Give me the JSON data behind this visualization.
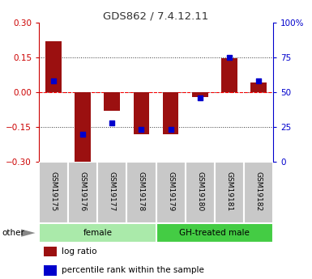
{
  "title": "GDS862 / 7.4.12.11",
  "samples": [
    "GSM19175",
    "GSM19176",
    "GSM19177",
    "GSM19178",
    "GSM19179",
    "GSM19180",
    "GSM19181",
    "GSM19182"
  ],
  "log_ratio": [
    0.22,
    -0.32,
    -0.08,
    -0.18,
    -0.18,
    -0.02,
    0.145,
    0.04
  ],
  "percentile": [
    58,
    20,
    28,
    23,
    23,
    46,
    75,
    58
  ],
  "groups": [
    {
      "label": "female",
      "start": 0,
      "end": 3,
      "color": "#AAEAAA"
    },
    {
      "label": "GH-treated male",
      "start": 4,
      "end": 7,
      "color": "#44CC44"
    }
  ],
  "ylim_left": [
    -0.3,
    0.3
  ],
  "ylim_right": [
    0,
    100
  ],
  "bar_color": "#9B1010",
  "dot_color": "#0000CC",
  "background_color": "#ffffff",
  "plot_bg_color": "#ffffff",
  "grid_color": "#333333",
  "zero_line_color": "#FF0000",
  "title_color": "#333333",
  "left_axis_color": "#CC0000",
  "right_axis_color": "#0000CC",
  "sample_bg_color": "#C8C8C8",
  "sample_border_color": "#ffffff",
  "legend_log_label": "log ratio",
  "legend_pct_label": "percentile rank within the sample",
  "other_label": "other",
  "arrow_color": "#888888"
}
